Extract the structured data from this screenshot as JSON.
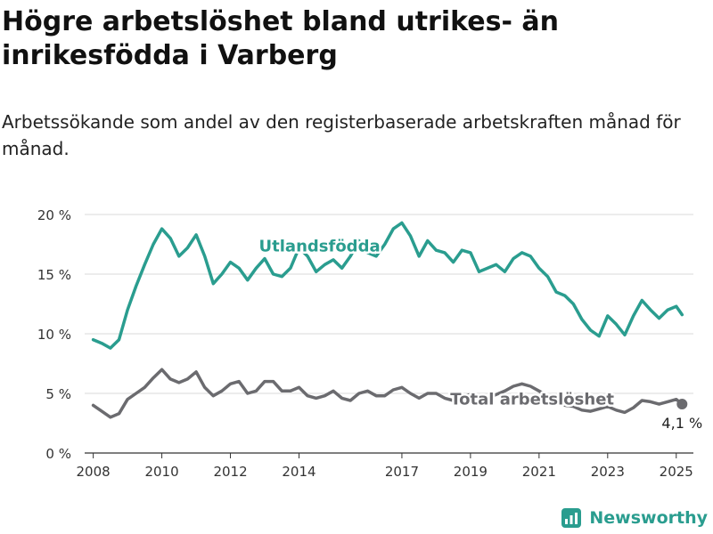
{
  "header": {
    "title": "Högre arbetslöshet bland utrikes- än inrikesfödda i Varberg",
    "subtitle": "Arbetssökande som andel av den registerbaserade arbetskraften månad för månad."
  },
  "brand": {
    "name": "Newsworthy",
    "icon": "bar-chart-icon",
    "color": "#2a9d8f"
  },
  "chart_data": {
    "type": "line",
    "title": "",
    "xlabel": "",
    "ylabel": "",
    "ylim": [
      0,
      20
    ],
    "xlim": [
      2007.75,
      2025.5
    ],
    "y_ticks": [
      0,
      5,
      10,
      15,
      20
    ],
    "y_tick_labels": [
      "0 %",
      "5 %",
      "10 %",
      "15 %",
      "20 %"
    ],
    "x_ticks": [
      2008,
      2010,
      2012,
      2014,
      2017,
      2019,
      2021,
      2023,
      2025
    ],
    "x_tick_labels": [
      "2008",
      "2010",
      "2012",
      "2014",
      "2017",
      "2019",
      "2021",
      "2023",
      "2025"
    ],
    "grid": "horizontal",
    "series": [
      {
        "name": "Utlandsfödda",
        "color": "#2a9d8f",
        "x": [
          2008.0,
          2008.25,
          2008.5,
          2008.75,
          2009.0,
          2009.25,
          2009.5,
          2009.75,
          2010.0,
          2010.25,
          2010.5,
          2010.75,
          2011.0,
          2011.25,
          2011.5,
          2011.75,
          2012.0,
          2012.25,
          2012.5,
          2012.75,
          2013.0,
          2013.25,
          2013.5,
          2013.75,
          2014.0,
          2014.25,
          2014.5,
          2014.75,
          2015.0,
          2015.25,
          2015.5,
          2015.75,
          2016.0,
          2016.25,
          2016.5,
          2016.75,
          2017.0,
          2017.25,
          2017.5,
          2017.75,
          2018.0,
          2018.25,
          2018.5,
          2018.75,
          2019.0,
          2019.25,
          2019.5,
          2019.75,
          2020.0,
          2020.25,
          2020.5,
          2020.75,
          2021.0,
          2021.25,
          2021.5,
          2021.75,
          2022.0,
          2022.25,
          2022.5,
          2022.75,
          2023.0,
          2023.25,
          2023.5,
          2023.75,
          2024.0,
          2024.25,
          2024.5,
          2024.75,
          2025.0,
          2025.17
        ],
        "values": [
          9.5,
          9.2,
          8.8,
          9.5,
          12.0,
          14.0,
          15.8,
          17.5,
          18.8,
          18.0,
          16.5,
          17.2,
          18.3,
          16.5,
          14.2,
          15.0,
          16.0,
          15.5,
          14.5,
          15.5,
          16.3,
          15.0,
          14.8,
          15.5,
          17.2,
          16.5,
          15.2,
          15.8,
          16.2,
          15.5,
          16.5,
          17.8,
          16.8,
          16.5,
          17.5,
          18.8,
          19.3,
          18.2,
          16.5,
          17.8,
          17.0,
          16.8,
          16.0,
          17.0,
          16.8,
          15.2,
          15.5,
          15.8,
          15.2,
          16.3,
          16.8,
          16.5,
          15.5,
          14.8,
          13.5,
          13.2,
          12.5,
          11.2,
          10.3,
          9.8,
          11.5,
          10.8,
          9.9,
          11.5,
          12.8,
          12.0,
          11.3,
          12.0,
          12.3,
          11.6
        ]
      },
      {
        "name": "Total arbetslöshet",
        "color": "#6b6b6f",
        "x": [
          2008.0,
          2008.25,
          2008.5,
          2008.75,
          2009.0,
          2009.25,
          2009.5,
          2009.75,
          2010.0,
          2010.25,
          2010.5,
          2010.75,
          2011.0,
          2011.25,
          2011.5,
          2011.75,
          2012.0,
          2012.25,
          2012.5,
          2012.75,
          2013.0,
          2013.25,
          2013.5,
          2013.75,
          2014.0,
          2014.25,
          2014.5,
          2014.75,
          2015.0,
          2015.25,
          2015.5,
          2015.75,
          2016.0,
          2016.25,
          2016.5,
          2016.75,
          2017.0,
          2017.25,
          2017.5,
          2017.75,
          2018.0,
          2018.25,
          2018.5,
          2018.75,
          2019.0,
          2019.25,
          2019.5,
          2019.75,
          2020.0,
          2020.25,
          2020.5,
          2020.75,
          2021.0,
          2021.25,
          2021.5,
          2021.75,
          2022.0,
          2022.25,
          2022.5,
          2022.75,
          2023.0,
          2023.25,
          2023.5,
          2023.75,
          2024.0,
          2024.25,
          2024.5,
          2024.75,
          2025.0,
          2025.17
        ],
        "values": [
          4.0,
          3.5,
          3.0,
          3.3,
          4.5,
          5.0,
          5.5,
          6.3,
          7.0,
          6.2,
          5.9,
          6.2,
          6.8,
          5.5,
          4.8,
          5.2,
          5.8,
          6.0,
          5.0,
          5.2,
          6.0,
          6.0,
          5.2,
          5.2,
          5.5,
          4.8,
          4.6,
          4.8,
          5.2,
          4.6,
          4.4,
          5.0,
          5.2,
          4.8,
          4.8,
          5.3,
          5.5,
          5.0,
          4.6,
          5.0,
          5.0,
          4.6,
          4.4,
          4.8,
          4.9,
          4.5,
          4.6,
          4.9,
          5.2,
          5.6,
          5.8,
          5.6,
          5.2,
          4.8,
          4.4,
          4.0,
          3.9,
          3.6,
          3.5,
          3.7,
          3.9,
          3.6,
          3.4,
          3.8,
          4.4,
          4.3,
          4.1,
          4.3,
          4.5,
          4.1
        ]
      }
    ],
    "annotations": [
      {
        "series": "Utlandsfödda",
        "text": "Utlandsfödda"
      },
      {
        "series": "Total arbetslöshet",
        "text": "Total arbetslöshet"
      },
      {
        "series": "Total arbetslöshet",
        "text": "4,1 %",
        "point": "last"
      }
    ]
  }
}
